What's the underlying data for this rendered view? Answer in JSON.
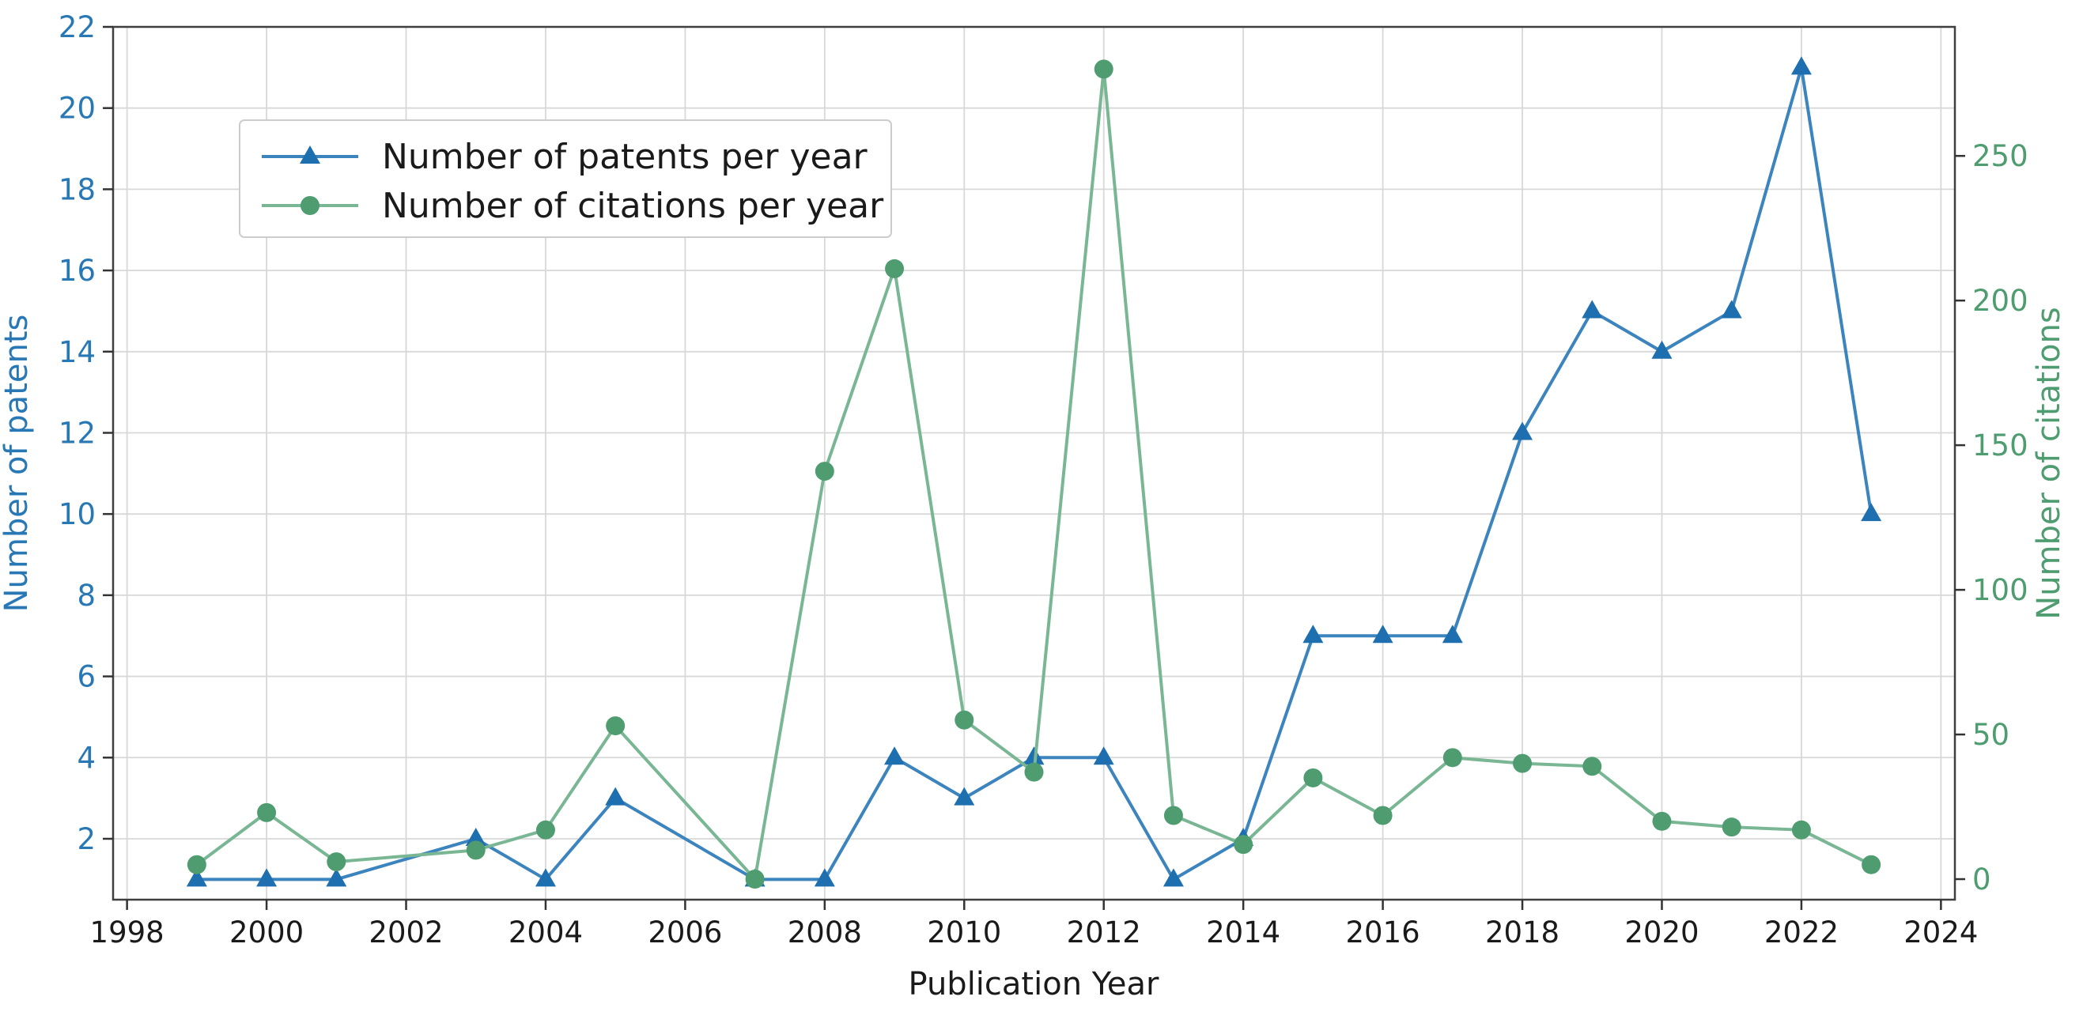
{
  "chart_data": {
    "type": "line",
    "title": "",
    "xlabel": "Publication Year",
    "ylabel_left": "Number of patents",
    "ylabel_right": "Number of citations",
    "x_ticks": [
      1998,
      2000,
      2002,
      2004,
      2006,
      2008,
      2010,
      2012,
      2014,
      2016,
      2018,
      2020,
      2022,
      2024
    ],
    "left_ticks": [
      2,
      4,
      6,
      8,
      10,
      12,
      14,
      16,
      18,
      20,
      22
    ],
    "right_ticks": [
      0,
      50,
      100,
      150,
      200,
      250
    ],
    "xlim": [
      1997.8,
      2024.2
    ],
    "ylim_left": [
      0.5,
      22
    ],
    "ylim_right": [
      -7.1,
      294.6
    ],
    "grid": "on (vertical year lines + horizontal left-axis lines)",
    "legend_position": "upper-left",
    "series": [
      {
        "name": "Number of patents per year",
        "axis": "left",
        "marker": "triangle",
        "color_line": "#3B84BE",
        "color_marker": "#1E6FAF",
        "x": [
          1999,
          2000,
          2001,
          2003,
          2004,
          2005,
          2007,
          2008,
          2009,
          2010,
          2011,
          2012,
          2013,
          2014,
          2015,
          2016,
          2017,
          2018,
          2019,
          2020,
          2021,
          2022,
          2023
        ],
        "values": [
          1,
          1,
          1,
          2,
          1,
          3,
          1,
          1,
          4,
          3,
          4,
          4,
          1,
          2,
          7,
          7,
          7,
          12,
          15,
          14,
          15,
          21,
          10
        ]
      },
      {
        "name": "Number of citations per year",
        "axis": "right",
        "marker": "circle",
        "color_line": "#79B694",
        "color_marker": "#4E9C6F",
        "x": [
          1999,
          2000,
          2001,
          2003,
          2004,
          2005,
          2007,
          2008,
          2009,
          2010,
          2011,
          2012,
          2013,
          2014,
          2015,
          2016,
          2017,
          2018,
          2019,
          2020,
          2021,
          2022,
          2023
        ],
        "values": [
          5,
          23,
          6,
          10,
          17,
          53,
          0,
          141,
          211,
          55,
          37,
          280,
          22,
          12,
          35,
          22,
          42,
          40,
          39,
          20,
          18,
          17,
          5
        ]
      }
    ],
    "colors": {
      "left_axis": "#2878B5",
      "right_axis": "#4E9C6F",
      "x_tick_label": "#1a1a1a",
      "grid": "#d8d8d8",
      "spine": "#3f3f3f",
      "tick_mark": "#333333",
      "legend_border": "#cccccc",
      "legend_bg": "#ffffff",
      "legend_text": "#1a1a1a"
    }
  }
}
